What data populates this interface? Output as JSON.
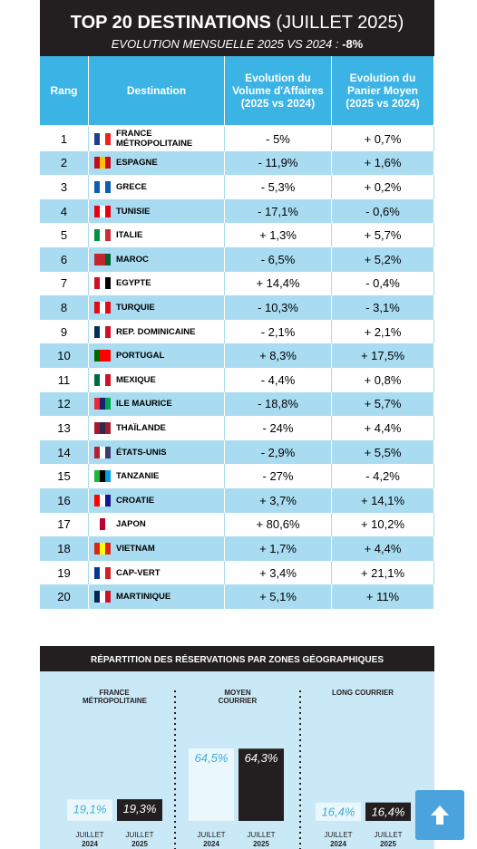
{
  "header": {
    "title": "TOP 20 DESTINATIONS",
    "title_period": "(JUILLET 2025)",
    "subtitle": "EVOLUTION MENSUELLE 2025 VS 2024 :",
    "subtitle_value": "-8%"
  },
  "table": {
    "columns": [
      "Rang",
      "Destination",
      "Evolution du Volume d'Affaires (2025 vs 2024)",
      "Evolution du Panier Moyen (2025 vs 2024)"
    ],
    "rows": [
      [
        "1",
        "FRANCE MÉTROPOLITAINE",
        "- 5%",
        "+ 0,7%"
      ],
      [
        "2",
        "ESPAGNE",
        "- 11,9%",
        "+ 1,6%"
      ],
      [
        "3",
        "GRECE",
        "- 5,3%",
        "+ 0,2%"
      ],
      [
        "4",
        "TUNISIE",
        "- 17,1%",
        "- 0,6%"
      ],
      [
        "5",
        "ITALIE",
        "+ 1,3%",
        "+ 5,7%"
      ],
      [
        "6",
        "MAROC",
        "- 6,5%",
        "+ 5,2%"
      ],
      [
        "7",
        "EGYPTE",
        "+ 14,4%",
        "- 0,4%"
      ],
      [
        "8",
        "TURQUIE",
        "- 10,3%",
        "- 3,1%"
      ],
      [
        "9",
        "REP. DOMINICAINE",
        "- 2,1%",
        "+ 2,1%"
      ],
      [
        "10",
        "PORTUGAL",
        "+ 8,3%",
        "+ 17,5%"
      ],
      [
        "11",
        "MEXIQUE",
        "- 4,4%",
        "+ 0,8%"
      ],
      [
        "12",
        "ILE MAURICE",
        "- 18,8%",
        "+ 5,7%"
      ],
      [
        "13",
        "THAÏLANDE",
        "- 24%",
        "+ 4,4%"
      ],
      [
        "14",
        "ÉTATS-UNIS",
        "- 2,9%",
        "+ 5,5%"
      ],
      [
        "15",
        "TANZANIE",
        "- 27%",
        "- 4,2%"
      ],
      [
        "16",
        "CROATIE",
        "+ 3,7%",
        "+ 14,1%"
      ],
      [
        "17",
        "JAPON",
        "+ 80,6%",
        "+ 10,2%"
      ],
      [
        "18",
        "VIETNAM",
        "+ 1,7%",
        "+ 4,4%"
      ],
      [
        "19",
        "CAP-VERT",
        "+ 3,4%",
        "+ 21,1%"
      ],
      [
        "20",
        "MARTINIQUE",
        "+ 5,1%",
        "+ 11%"
      ]
    ]
  },
  "chart_data": {
    "type": "bar",
    "title": "RÉPARTITION DES RÉSERVATIONS PAR ZONES GÉOGRAPHIQUES",
    "categories": [
      "FRANCE MÉTROPOLITAINE",
      "MOYEN COURRIER",
      "LONG COURRIER"
    ],
    "series": [
      {
        "name": "JUILLET 2024",
        "color": "#eaf7fc",
        "values": [
          19.1,
          64.5,
          16.4
        ],
        "value_labels": [
          "19,1%",
          "64,5%",
          "16,4%"
        ]
      },
      {
        "name": "JUILLET 2025",
        "color": "#231f20",
        "values": [
          19.3,
          64.3,
          16.4
        ],
        "value_labels": [
          "19,3%",
          "64,3%",
          "16,4%"
        ]
      }
    ]
  }
}
